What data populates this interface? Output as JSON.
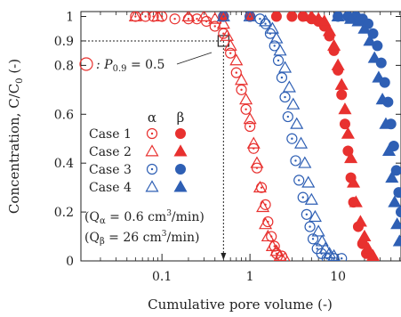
{
  "chart_data": {
    "type": "scatter",
    "title": "",
    "xlabel": "Cumulative pore volume (-)",
    "ylabel": "Concentration, C/C",
    "ylabel_sub": "0",
    "ylabel_unit": " (-)",
    "x_scale": "log",
    "xlim": [
      0.012,
      52
    ],
    "ylim": [
      0,
      1.02
    ],
    "x_ticks": [
      {
        "value": 0.1,
        "label": "0.1"
      },
      {
        "value": 1,
        "label": "1"
      },
      {
        "value": 10,
        "label": "10"
      }
    ],
    "y_ticks": [
      {
        "value": 0,
        "label": "0"
      },
      {
        "value": 0.2,
        "label": "0.2"
      },
      {
        "value": 0.4,
        "label": "0.4"
      },
      {
        "value": 0.6,
        "label": "0.6"
      },
      {
        "value": 0.8,
        "label": "0.8"
      },
      {
        "value": 0.9,
        "label": "0.9"
      },
      {
        "value": 1.0,
        "label": "1"
      }
    ],
    "grid": false,
    "legend_position": "center-left",
    "legend_headers": {
      "alpha": "α",
      "beta": "β"
    },
    "legend_cases": [
      "Case 1",
      "Case 2",
      "Case 3",
      "Case 4"
    ],
    "annotation": {
      "label_prefix": ": P",
      "label_sub": "0.9",
      "label_suffix": " = 0.5",
      "x": 0.5,
      "y": 0.9
    },
    "flow_notes": {
      "alpha": {
        "open": "(Q",
        "sub": "α",
        "text": " = 0.6 cm",
        "sup": "3",
        "close": "/min)"
      },
      "beta": {
        "open": "(Q",
        "sub": "β",
        "text": " = 26 cm",
        "sup": "3",
        "close": "/min)"
      }
    },
    "colors": {
      "red": "#e8312f",
      "blue": "#2e5fb4",
      "black": "#222222"
    },
    "series": [
      {
        "name": "Case 1 α",
        "marker": "circle-open-dot",
        "color": "#e8312f",
        "points": [
          [
            0.05,
            1.0
          ],
          [
            0.065,
            1.0
          ],
          [
            0.08,
            1.0
          ],
          [
            0.1,
            1.0
          ],
          [
            0.14,
            0.99
          ],
          [
            0.2,
            0.99
          ],
          [
            0.25,
            0.99
          ],
          [
            0.32,
            0.98
          ],
          [
            0.4,
            0.96
          ],
          [
            0.5,
            0.93
          ],
          [
            0.6,
            0.85
          ],
          [
            0.7,
            0.77
          ],
          [
            0.8,
            0.7
          ],
          [
            0.9,
            0.62
          ],
          [
            1.0,
            0.55
          ],
          [
            1.1,
            0.46
          ],
          [
            1.2,
            0.38
          ],
          [
            1.35,
            0.3
          ],
          [
            1.5,
            0.23
          ],
          [
            1.6,
            0.16
          ],
          [
            1.75,
            0.1
          ],
          [
            1.9,
            0.06
          ],
          [
            2.0,
            0.03
          ],
          [
            2.3,
            0.02
          ]
        ]
      },
      {
        "name": "Case 1 β",
        "marker": "circle-filled",
        "color": "#e8312f",
        "points": [
          [
            0.5,
            1.0
          ],
          [
            1,
            1.0
          ],
          [
            2,
            1.0
          ],
          [
            3,
            1.0
          ],
          [
            4,
            1.0
          ],
          [
            5,
            0.99
          ],
          [
            6,
            0.98
          ],
          [
            7,
            0.96
          ],
          [
            8,
            0.92
          ],
          [
            9,
            0.86
          ],
          [
            10,
            0.78
          ],
          [
            11,
            0.68
          ],
          [
            12,
            0.56
          ],
          [
            13,
            0.45
          ],
          [
            14,
            0.34
          ],
          [
            15,
            0.24
          ],
          [
            17,
            0.14
          ],
          [
            19,
            0.07
          ],
          [
            21,
            0.03
          ]
        ]
      },
      {
        "name": "Case 2 α",
        "marker": "triangle-open",
        "color": "#e8312f",
        "points": [
          [
            0.05,
            1.0
          ],
          [
            0.09,
            1.0
          ],
          [
            0.2,
            1.0
          ],
          [
            0.3,
            1.0
          ],
          [
            0.4,
            0.99
          ],
          [
            0.5,
            0.97
          ],
          [
            0.55,
            0.92
          ],
          [
            0.6,
            0.88
          ],
          [
            0.7,
            0.82
          ],
          [
            0.8,
            0.74
          ],
          [
            0.9,
            0.66
          ],
          [
            1.0,
            0.58
          ],
          [
            1.1,
            0.48
          ],
          [
            1.2,
            0.4
          ],
          [
            1.3,
            0.3
          ],
          [
            1.4,
            0.22
          ],
          [
            1.5,
            0.15
          ],
          [
            1.6,
            0.1
          ],
          [
            1.8,
            0.06
          ],
          [
            2.0,
            0.04
          ],
          [
            2.2,
            0.02
          ],
          [
            2.5,
            0.01
          ]
        ]
      },
      {
        "name": "Case 2 β",
        "marker": "triangle-filled",
        "color": "#e8312f",
        "points": [
          [
            5,
            1.0
          ],
          [
            6,
            0.99
          ],
          [
            7,
            0.98
          ],
          [
            8,
            0.94
          ],
          [
            9,
            0.88
          ],
          [
            10,
            0.8
          ],
          [
            11,
            0.72
          ],
          [
            12,
            0.62
          ],
          [
            13,
            0.52
          ],
          [
            14,
            0.42
          ],
          [
            15,
            0.32
          ],
          [
            16,
            0.24
          ],
          [
            18,
            0.16
          ],
          [
            20,
            0.1
          ],
          [
            22,
            0.05
          ],
          [
            25,
            0.02
          ]
        ]
      },
      {
        "name": "Case 3 α",
        "marker": "circle-open-dot",
        "color": "#2e5fb4",
        "points": [
          [
            0.5,
            1.0
          ],
          [
            1,
            1.0
          ],
          [
            1.3,
            0.99
          ],
          [
            1.5,
            0.97
          ],
          [
            1.7,
            0.93
          ],
          [
            1.9,
            0.88
          ],
          [
            2.1,
            0.82
          ],
          [
            2.3,
            0.75
          ],
          [
            2.5,
            0.67
          ],
          [
            2.7,
            0.59
          ],
          [
            3.0,
            0.5
          ],
          [
            3.3,
            0.41
          ],
          [
            3.6,
            0.33
          ],
          [
            4.0,
            0.26
          ],
          [
            4.4,
            0.19
          ],
          [
            4.8,
            0.14
          ],
          [
            5.2,
            0.09
          ],
          [
            5.8,
            0.05
          ],
          [
            6.5,
            0.03
          ],
          [
            7.5,
            0.01
          ],
          [
            9,
            0.01
          ],
          [
            11,
            0.01
          ]
        ]
      },
      {
        "name": "Case 3 β",
        "marker": "circle-filled",
        "color": "#2e5fb4",
        "points": [
          [
            10,
            1.0
          ],
          [
            13,
            1.0
          ],
          [
            16,
            1.0
          ],
          [
            19,
            0.99
          ],
          [
            22,
            0.97
          ],
          [
            25,
            0.93
          ],
          [
            28,
            0.88
          ],
          [
            31,
            0.81
          ],
          [
            34,
            0.73
          ],
          [
            37,
            0.65
          ],
          [
            40,
            0.56
          ],
          [
            43,
            0.47
          ],
          [
            46,
            0.37
          ],
          [
            49,
            0.28
          ],
          [
            52,
            0.2
          ]
        ]
      },
      {
        "name": "Case 4 α",
        "marker": "triangle-open",
        "color": "#2e5fb4",
        "points": [
          [
            0.5,
            1.0
          ],
          [
            1,
            1.0
          ],
          [
            1.5,
            0.98
          ],
          [
            1.8,
            0.95
          ],
          [
            2.0,
            0.91
          ],
          [
            2.2,
            0.86
          ],
          [
            2.5,
            0.79
          ],
          [
            2.8,
            0.71
          ],
          [
            3.1,
            0.64
          ],
          [
            3.4,
            0.56
          ],
          [
            3.8,
            0.48
          ],
          [
            4.2,
            0.4
          ],
          [
            4.6,
            0.32
          ],
          [
            5.0,
            0.25
          ],
          [
            5.5,
            0.18
          ],
          [
            6.0,
            0.12
          ],
          [
            6.6,
            0.08
          ],
          [
            7.2,
            0.05
          ],
          [
            8,
            0.03
          ],
          [
            9,
            0.02
          ]
        ]
      },
      {
        "name": "Case 4 β",
        "marker": "triangle-filled",
        "color": "#2e5fb4",
        "points": [
          [
            10,
            1.0
          ],
          [
            14,
            0.99
          ],
          [
            17,
            0.98
          ],
          [
            20,
            0.95
          ],
          [
            23,
            0.9
          ],
          [
            26,
            0.83
          ],
          [
            29,
            0.75
          ],
          [
            32,
            0.66
          ],
          [
            35,
            0.56
          ],
          [
            38,
            0.45
          ],
          [
            41,
            0.34
          ],
          [
            44,
            0.24
          ],
          [
            47,
            0.15
          ],
          [
            50,
            0.08
          ]
        ]
      }
    ]
  }
}
